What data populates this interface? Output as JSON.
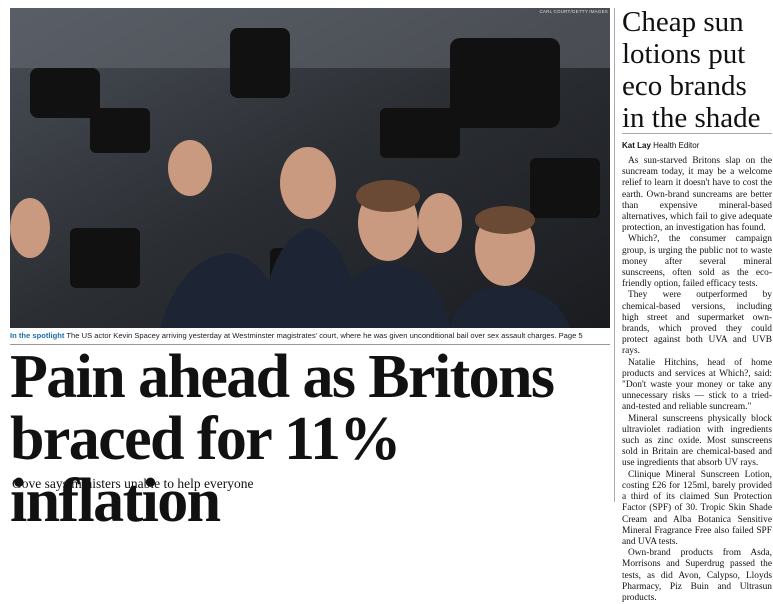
{
  "photo": {
    "credit": "CARL COURT/GETTY IMAGES",
    "caption_label": "In the spotlight",
    "caption": "The US actor Kevin Spacey arriving yesterday at Westminster magistrates' court, where he was given unconditional bail over sex assault charges. Page 5"
  },
  "lead": {
    "headline": "Pain ahead as Britons braced for 11% inflation",
    "standfirst": "Gove says ministers unable to help everyone"
  },
  "side": {
    "headline": "Cheap sun lotions put eco brands in the shade",
    "byline_name": "Kat Lay",
    "byline_role": "Health Editor",
    "paragraphs": [
      "As sun-starved Britons slap on the suncream today, it may be a welcome relief to learn it doesn't have to cost the earth. Own-brand suncreams are better than expensive mineral-based alternatives, which fail to give adequate protection, an investigation has found.",
      "Which?, the consumer campaign group, is urging the public not to waste money after several mineral sunscreens, often sold as the eco-friendly option, failed efficacy tests.",
      "They were outperformed by chemical-based versions, including high street and supermarket own-brands, which proved they could protect against both UVA and UVB rays.",
      "Natalie Hitchins, head of home products and services at Which?, said: \"Don't waste your money or take any unnecessary risks — stick to a tried-and-tested and reliable suncream.\"",
      "Mineral sunscreens physically block ultraviolet radiation with ingredients such as zinc oxide. Most sunscreens sold in Britain are chemical-based and use ingredients that absorb UV rays.",
      "Clinique Mineral Sunscreen Lotion, costing £26 for 125ml, barely provided a third of its claimed Sun Protection Factor (SPF) of 30. Tropic Skin Shade Cream and Alba Botanica Sensitive Mineral Fragrance Free also failed SPF and UVA tests.",
      "Own-brand products from Asda, Morrisons and Superdrug passed the tests, as did Avon, Calypso, Lloyds Pharmacy, Piz Buin and Ultrasun products."
    ]
  }
}
